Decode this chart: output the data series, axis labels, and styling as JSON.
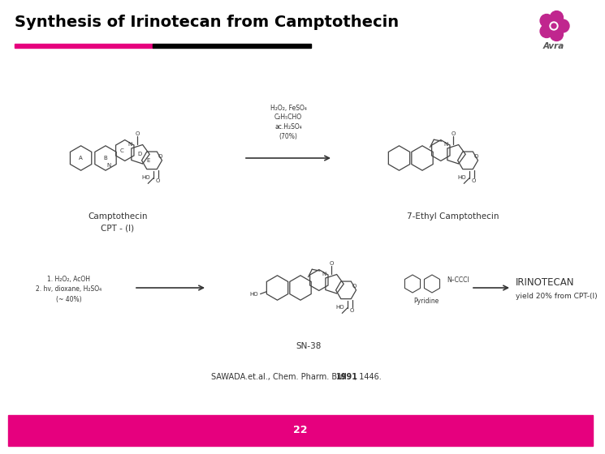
{
  "title": "Synthesis of Irinotecan from Camptothecin",
  "title_color": "#000000",
  "title_fontsize": 14,
  "header_bar_pink": "#E6007E",
  "header_bar_black": "#000000",
  "footer_bar_color": "#E6007E",
  "footer_number": "22",
  "footer_number_color": "#FFFFFF",
  "footer_number_fontsize": 9,
  "background_color": "#FFFFFF",
  "logo_color": "#C0268E",
  "logo_text": "Avra",
  "reaction1_reagents": "H₂O₂, FeSO₄\nC₂H₅CHO\nac.H₂SO₄\n(70%)",
  "reaction2_reagents": "1. H₂O₂, AcOH\n2. hv, dioxane, H₂SO₄\n(~ 40%)",
  "reaction3_reagents": "Pyridine",
  "mol1_name": "Camptothecin\nCPT - (I)",
  "mol2_name": "7-Ethyl Camptothecin",
  "mol3_name": "SN-38",
  "mol4_name": "IRINOTECAN",
  "mol4_extra": "yield 20% from CPT-(I)",
  "reference": "SAWADA.et.al., Chem. Pharm. Bull. ",
  "ref_year": "1991",
  "ref_end": ", 1446."
}
